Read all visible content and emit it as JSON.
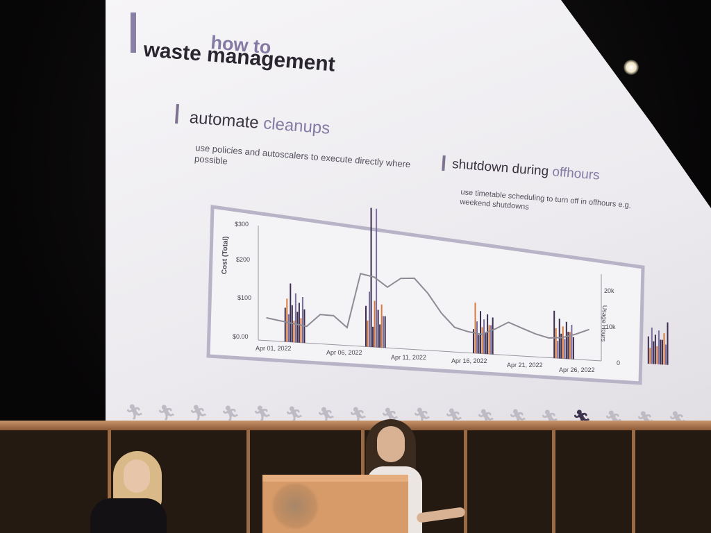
{
  "slide": {
    "title_small": "how to",
    "title_large": "waste management",
    "section1": {
      "title_part1": "automate ",
      "title_accent": "cleanups",
      "description": "use policies and autoscalers to execute directly where possible"
    },
    "section2": {
      "title_part1": "shutdown during ",
      "title_accent": "offhours",
      "description": "use timetable scheduling to turn off in offhours e.g. weekend shutdowns"
    }
  },
  "chart_data": {
    "type": "line",
    "ylabel": "Cost (Total)",
    "y2label": "Usage Hours",
    "y_ticks": [
      "$300",
      "$200",
      "$100",
      "$0.00"
    ],
    "y2_ticks": [
      "20k",
      "10k",
      "0"
    ],
    "x_ticks": [
      "Apr 01, 2022",
      "Apr 06, 2022",
      "Apr 11, 2022",
      "Apr 16, 2022",
      "Apr 21, 2022",
      "Apr 26, 2022"
    ],
    "ylim": [
      0,
      300
    ],
    "series": [
      {
        "values": [
          60,
          55,
          50,
          45,
          80,
          80,
          50,
          205,
          200,
          175,
          205,
          210,
          170,
          115,
          75,
          65,
          60,
          80,
          105,
          90,
          75,
          65,
          70,
          85,
          105
        ]
      }
    ],
    "bar_clusters_days": [
      2,
      8,
      16,
      22,
      29
    ]
  },
  "colors": {
    "accent": "#857aa3",
    "title": "#2a2630",
    "line": "#8f8b95",
    "bar_dark": "#3a2d4d",
    "bar_orange": "#d9793a",
    "bar_purple": "#7a6ea0"
  },
  "logo_strip": {
    "icon": "runner-icon",
    "count": 18,
    "active_index": 14
  }
}
